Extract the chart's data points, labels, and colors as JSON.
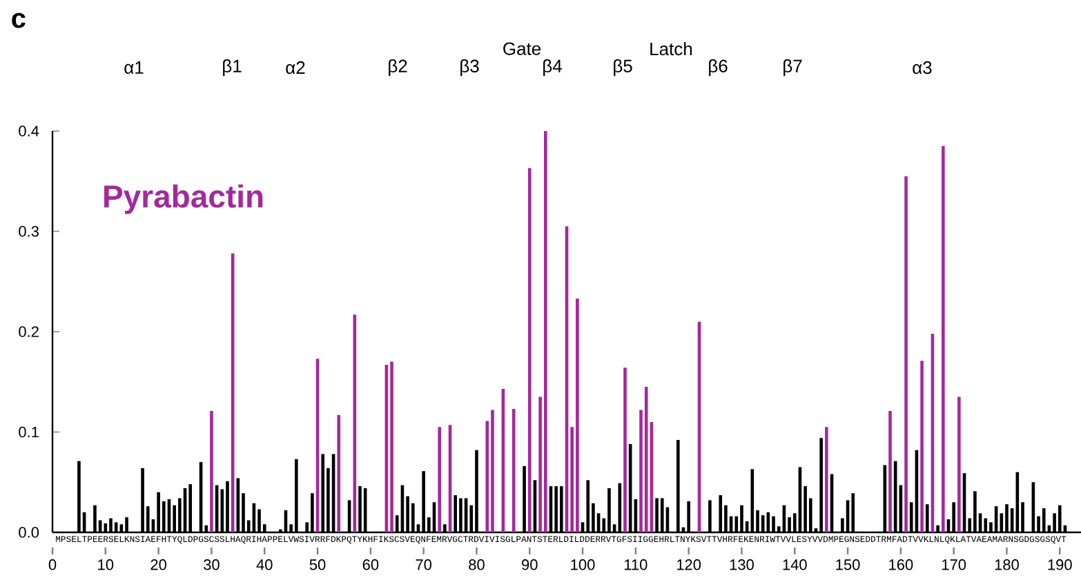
{
  "chart_data": {
    "type": "bar",
    "title": "c",
    "x": [
      5,
      6,
      7,
      8,
      9,
      10,
      11,
      12,
      13,
      14,
      15,
      16,
      17,
      18,
      19,
      20,
      21,
      22,
      23,
      24,
      25,
      26,
      27,
      28,
      29,
      30,
      31,
      32,
      33,
      34,
      35,
      36,
      37,
      38,
      39,
      40,
      41,
      42,
      43,
      44,
      45,
      46,
      47,
      48,
      49,
      50,
      51,
      52,
      53,
      54,
      55,
      56,
      57,
      58,
      59,
      60,
      61,
      62,
      63,
      64,
      65,
      66,
      67,
      68,
      69,
      70,
      71,
      72,
      73,
      74,
      75,
      76,
      77,
      78,
      79,
      80,
      81,
      82,
      83,
      84,
      85,
      86,
      87,
      88,
      89,
      90,
      91,
      92,
      93,
      94,
      95,
      96,
      97,
      98,
      99,
      100,
      101,
      102,
      103,
      104,
      105,
      106,
      107,
      108,
      109,
      110,
      111,
      112,
      113,
      114,
      115,
      116,
      117,
      118,
      119,
      120,
      121,
      122,
      123,
      124,
      125,
      126,
      127,
      128,
      129,
      130,
      131,
      132,
      133,
      134,
      135,
      136,
      137,
      138,
      139,
      140,
      141,
      142,
      143,
      144,
      145,
      146,
      147,
      148,
      149,
      150,
      151,
      152,
      153,
      154,
      155,
      156,
      157,
      158,
      159,
      160,
      161,
      162,
      163,
      164,
      165,
      166,
      167,
      168,
      169,
      170,
      171,
      172,
      173,
      174,
      175,
      176,
      177,
      178,
      179,
      180,
      181,
      182,
      183,
      184,
      185,
      186,
      187,
      188,
      189,
      190,
      191
    ],
    "values": [
      0.071,
      0.02,
      null,
      0.027,
      0.012,
      0.009,
      0.014,
      0.01,
      0.008,
      0.015,
      null,
      null,
      0.064,
      0.026,
      0.013,
      0.04,
      0.031,
      0.033,
      0.027,
      0.034,
      0.044,
      0.048,
      null,
      0.07,
      0.007,
      0.121,
      0.047,
      0.043,
      0.051,
      0.278,
      0.054,
      0.039,
      0.012,
      0.029,
      0.023,
      0.008,
      null,
      null,
      0.003,
      0.022,
      0.008,
      0.073,
      null,
      0.01,
      0.039,
      0.173,
      0.078,
      0.064,
      0.078,
      0.117,
      null,
      0.032,
      0.217,
      0.046,
      0.044,
      null,
      null,
      null,
      0.167,
      0.17,
      0.017,
      0.047,
      0.036,
      0.029,
      0.008,
      0.061,
      0.015,
      0.03,
      0.105,
      0.008,
      0.107,
      0.037,
      0.034,
      0.034,
      0.027,
      0.082,
      null,
      0.111,
      0.122,
      null,
      0.143,
      null,
      0.123,
      null,
      0.066,
      0.363,
      0.052,
      0.135,
      0.4,
      0.046,
      0.046,
      0.046,
      0.305,
      0.105,
      0.233,
      0.01,
      0.052,
      0.029,
      0.019,
      0.014,
      0.044,
      0.008,
      0.049,
      0.164,
      0.088,
      0.033,
      0.122,
      0.145,
      0.11,
      0.034,
      0.034,
      0.025,
      null,
      0.092,
      0.005,
      0.031,
      null,
      0.21,
      null,
      0.032,
      null,
      0.037,
      0.027,
      0.016,
      0.016,
      0.027,
      0.011,
      0.063,
      0.022,
      0.017,
      0.02,
      0.016,
      0.006,
      0.027,
      0.015,
      0.019,
      0.065,
      0.046,
      0.034,
      0.004,
      0.094,
      0.105,
      0.058,
      null,
      0.014,
      0.032,
      0.039,
      null,
      null,
      null,
      null,
      null,
      0.067,
      0.121,
      0.071,
      0.047,
      0.355,
      0.03,
      0.082,
      0.171,
      0.028,
      0.198,
      0.007,
      0.385,
      0.013,
      0.03,
      0.135,
      0.059,
      0.014,
      0.041,
      0.019,
      0.014,
      0.01,
      0.026,
      0.019,
      0.028,
      0.024,
      0.06,
      0.03,
      null,
      0.05,
      0.016,
      0.024,
      0.007,
      0.019,
      0.027,
      0.007
    ],
    "colors": [
      "#000000",
      "#000000",
      "#000000",
      "#000000",
      "#000000",
      "#000000",
      "#000000",
      "#000000",
      "#000000",
      "#000000",
      "#000000",
      "#000000",
      "#000000",
      "#000000",
      "#000000",
      "#000000",
      "#000000",
      "#000000",
      "#000000",
      "#000000",
      "#000000",
      "#000000",
      "#000000",
      "#000000",
      "#000000",
      "#a3299d",
      "#000000",
      "#000000",
      "#000000",
      "#a3299d",
      "#000000",
      "#000000",
      "#000000",
      "#000000",
      "#000000",
      "#000000",
      "#000000",
      "#000000",
      "#000000",
      "#000000",
      "#000000",
      "#000000",
      "#000000",
      "#000000",
      "#000000",
      "#a3299d",
      "#000000",
      "#000000",
      "#000000",
      "#a3299d",
      "#000000",
      "#000000",
      "#a3299d",
      "#000000",
      "#000000",
      "#000000",
      "#000000",
      "#000000",
      "#a3299d",
      "#a3299d",
      "#000000",
      "#000000",
      "#000000",
      "#000000",
      "#000000",
      "#000000",
      "#000000",
      "#000000",
      "#a3299d",
      "#000000",
      "#a3299d",
      "#000000",
      "#000000",
      "#000000",
      "#000000",
      "#000000",
      "#000000",
      "#a3299d",
      "#a3299d",
      "#000000",
      "#a3299d",
      "#000000",
      "#a3299d",
      "#000000",
      "#000000",
      "#a3299d",
      "#000000",
      "#a3299d",
      "#a3299d",
      "#000000",
      "#000000",
      "#000000",
      "#a3299d",
      "#a3299d",
      "#a3299d",
      "#000000",
      "#000000",
      "#000000",
      "#000000",
      "#000000",
      "#000000",
      "#000000",
      "#000000",
      "#a3299d",
      "#000000",
      "#000000",
      "#a3299d",
      "#a3299d",
      "#a3299d",
      "#000000",
      "#000000",
      "#000000",
      "#000000",
      "#000000",
      "#000000",
      "#000000",
      "#000000",
      "#a3299d",
      "#000000",
      "#000000",
      "#000000",
      "#000000",
      "#000000",
      "#000000",
      "#000000",
      "#000000",
      "#000000",
      "#000000",
      "#000000",
      "#000000",
      "#000000",
      "#000000",
      "#000000",
      "#000000",
      "#000000",
      "#000000",
      "#000000",
      "#000000",
      "#000000",
      "#000000",
      "#000000",
      "#a3299d",
      "#000000",
      "#000000",
      "#000000",
      "#000000",
      "#000000",
      "#000000",
      "#000000",
      "#000000",
      "#000000",
      "#000000",
      "#000000",
      "#a3299d",
      "#000000",
      "#000000",
      "#a3299d",
      "#000000",
      "#000000",
      "#a3299d",
      "#000000",
      "#a3299d",
      "#000000",
      "#a3299d",
      "#000000",
      "#000000",
      "#a3299d",
      "#000000",
      "#000000",
      "#000000",
      "#000000",
      "#000000",
      "#000000",
      "#000000",
      "#000000",
      "#000000",
      "#000000",
      "#000000",
      "#000000",
      "#000000",
      "#000000",
      "#000000",
      "#000000",
      "#000000",
      "#000000",
      "#000000",
      "#000000"
    ],
    "xlim": [
      0,
      194
    ],
    "ylim": [
      0,
      0.4
    ],
    "xticks": [
      0,
      10,
      20,
      30,
      40,
      50,
      60,
      70,
      80,
      90,
      100,
      110,
      120,
      130,
      140,
      150,
      160,
      170,
      180,
      190
    ],
    "yticks": [
      {
        "value": 0,
        "label": "0.0"
      },
      0.1,
      0.2,
      0.3,
      0.4
    ],
    "annotations": [
      "Pyrabactin",
      "MPSELTPEERSELKNSIAEFHTYQLDPGSCSSLHAQRIHAPPELVWSIVRRFDKPQTYKHFIKSCSVEQNFEMRVGCTRDVIVISGLPANTSTERLDILDDERRVTGFSIIGGEHRLTNYKSVTTVHRFEKENRIWTVVLESYVVDMPEGNSEDDTRMFADTVVKLNLQKLATVAEAMARNSGDGSGSQVT",
      "α1",
      "β1",
      "α2",
      "β2",
      "β3",
      "β4",
      "β5",
      "β6",
      "β7",
      "α3",
      "Gate",
      "Latch"
    ]
  }
}
